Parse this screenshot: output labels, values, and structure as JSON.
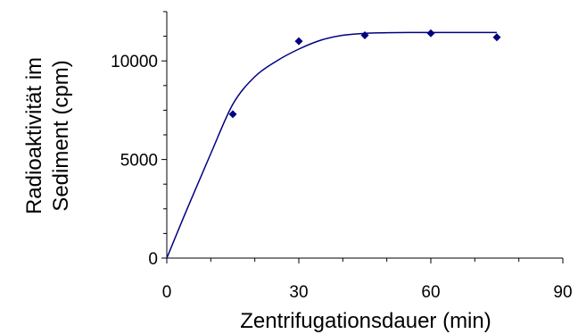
{
  "chart_data": {
    "type": "scatter",
    "xlabel": "Zentrifugationsdauer (min)",
    "ylabel_lines": [
      "Radioaktivität im",
      "Sediment (cpm)"
    ],
    "xlim": [
      0,
      90
    ],
    "ylim": [
      0,
      12500
    ],
    "x_ticks": [
      0,
      30,
      60,
      90
    ],
    "x_tick_labels": [
      "0",
      "30",
      "60",
      "90"
    ],
    "y_ticks": [
      0,
      5000,
      10000
    ],
    "y_tick_labels": [
      "0",
      "5000",
      "10000"
    ],
    "grid": false,
    "legend": "none",
    "series": [
      {
        "kind": "points",
        "marker": "diamond",
        "color": "#000080",
        "x": [
          15,
          30,
          45,
          60,
          75
        ],
        "y": [
          7300,
          11000,
          11300,
          11400,
          11200
        ]
      },
      {
        "kind": "line",
        "color": "#000080",
        "x": [
          0,
          5,
          10,
          15,
          20,
          25,
          30,
          35,
          40,
          45,
          50,
          55,
          60,
          65,
          70,
          75
        ],
        "y": [
          0,
          2700,
          5300,
          7800,
          9200,
          10000,
          10600,
          11050,
          11300,
          11400,
          11430,
          11440,
          11440,
          11440,
          11440,
          11440
        ]
      }
    ]
  }
}
